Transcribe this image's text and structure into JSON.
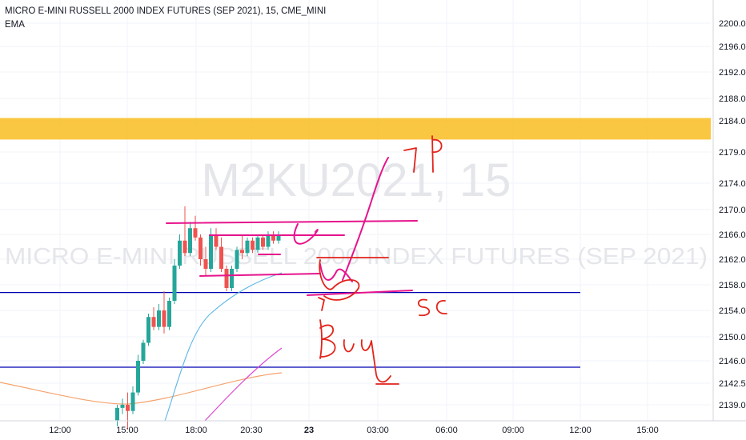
{
  "header": {
    "title": "MICRO E-MINI RUSSELL 2000 INDEX FUTURES (SEP 2021), 15, CME_MINI",
    "indicator": "EMA"
  },
  "watermark": {
    "symbol": "M2KU2021, 15",
    "name": "MICRO E-MINI RUSSELL 2000 INDEX FUTURES (SEP 2021)"
  },
  "colors": {
    "background": "#ffffff",
    "grid": "#f0f3fa",
    "bull": "#26a69a",
    "bear": "#ef5350",
    "zone": "#f9c12e",
    "hline": "#0000b3",
    "ema_orange": "#f6a36d",
    "ema_blue": "#5cb7e6",
    "ema_magenta": "#e040d0",
    "drawing_magenta": "#e6148c",
    "drawing_red": "#e2231a"
  },
  "chart_data": {
    "type": "candlestick",
    "y_axis_ticks": [
      2139.0,
      2142.5,
      2146.0,
      2150.0,
      2154.0,
      2158.0,
      2162.0,
      2166.0,
      2170.0,
      2174.0,
      2179.0,
      2184.0,
      2188.0,
      2192.0,
      2196.0,
      2200.0
    ],
    "x_axis_ticks": [
      {
        "label": "12:00",
        "bold": false
      },
      {
        "label": "15:00",
        "bold": false
      },
      {
        "label": "18:00",
        "bold": false
      },
      {
        "label": "20:30",
        "bold": false
      },
      {
        "label": "23",
        "bold": true
      },
      {
        "label": "03:00",
        "bold": false
      },
      {
        "label": "06:00",
        "bold": false
      },
      {
        "label": "09:00",
        "bold": false
      },
      {
        "label": "12:00",
        "bold": false
      },
      {
        "label": "15:00",
        "bold": false
      }
    ],
    "candles": [
      {
        "o": 2136.5,
        "h": 2139.0,
        "l": 2135.5,
        "c": 2138.5
      },
      {
        "o": 2138.5,
        "h": 2140.0,
        "l": 2137.5,
        "c": 2139.0
      },
      {
        "o": 2139.0,
        "h": 2141.0,
        "l": 2135.0,
        "c": 2138.0
      },
      {
        "o": 2138.0,
        "h": 2142.0,
        "l": 2137.5,
        "c": 2141.0
      },
      {
        "o": 2141.0,
        "h": 2147.0,
        "l": 2140.5,
        "c": 2146.0
      },
      {
        "o": 2146.0,
        "h": 2149.5,
        "l": 2145.5,
        "c": 2149.0
      },
      {
        "o": 2149.0,
        "h": 2153.5,
        "l": 2148.5,
        "c": 2153.0
      },
      {
        "o": 2153.0,
        "h": 2154.5,
        "l": 2151.0,
        "c": 2151.5
      },
      {
        "o": 2151.5,
        "h": 2155.0,
        "l": 2151.0,
        "c": 2154.0
      },
      {
        "o": 2154.0,
        "h": 2157.0,
        "l": 2150.5,
        "c": 2151.5
      },
      {
        "o": 2151.5,
        "h": 2156.0,
        "l": 2151.0,
        "c": 2155.5
      },
      {
        "o": 2155.5,
        "h": 2162.0,
        "l": 2155.0,
        "c": 2161.0
      },
      {
        "o": 2161.0,
        "h": 2166.0,
        "l": 2160.5,
        "c": 2165.0
      },
      {
        "o": 2165.0,
        "h": 2170.5,
        "l": 2162.5,
        "c": 2163.0
      },
      {
        "o": 2163.0,
        "h": 2168.0,
        "l": 2162.5,
        "c": 2167.0
      },
      {
        "o": 2167.0,
        "h": 2169.0,
        "l": 2165.0,
        "c": 2165.5
      },
      {
        "o": 2165.5,
        "h": 2166.0,
        "l": 2161.0,
        "c": 2162.0
      },
      {
        "o": 2162.0,
        "h": 2164.0,
        "l": 2159.5,
        "c": 2160.5
      },
      {
        "o": 2160.5,
        "h": 2167.0,
        "l": 2160.0,
        "c": 2166.0
      },
      {
        "o": 2166.0,
        "h": 2167.0,
        "l": 2163.5,
        "c": 2164.0
      },
      {
        "o": 2164.0,
        "h": 2165.5,
        "l": 2160.0,
        "c": 2160.5
      },
      {
        "o": 2160.5,
        "h": 2161.0,
        "l": 2157.0,
        "c": 2157.5
      },
      {
        "o": 2157.5,
        "h": 2161.0,
        "l": 2157.0,
        "c": 2160.5
      },
      {
        "o": 2160.5,
        "h": 2164.0,
        "l": 2160.0,
        "c": 2163.5
      },
      {
        "o": 2163.5,
        "h": 2166.0,
        "l": 2162.0,
        "c": 2163.0
      },
      {
        "o": 2163.0,
        "h": 2165.5,
        "l": 2162.5,
        "c": 2165.0
      },
      {
        "o": 2165.0,
        "h": 2165.5,
        "l": 2163.0,
        "c": 2163.5
      },
      {
        "o": 2163.5,
        "h": 2166.0,
        "l": 2163.0,
        "c": 2165.5
      },
      {
        "o": 2165.5,
        "h": 2166.0,
        "l": 2163.5,
        "c": 2164.0
      },
      {
        "o": 2164.0,
        "h": 2166.5,
        "l": 2163.5,
        "c": 2166.0
      },
      {
        "o": 2166.0,
        "h": 2166.5,
        "l": 2164.5,
        "c": 2165.0
      },
      {
        "o": 2165.0,
        "h": 2166.5,
        "l": 2164.5,
        "c": 2166.0
      }
    ],
    "zone": {
      "from": 2181.0,
      "to": 2184.5
    },
    "horizontal_lines": [
      2156.8,
      2145.0
    ]
  }
}
